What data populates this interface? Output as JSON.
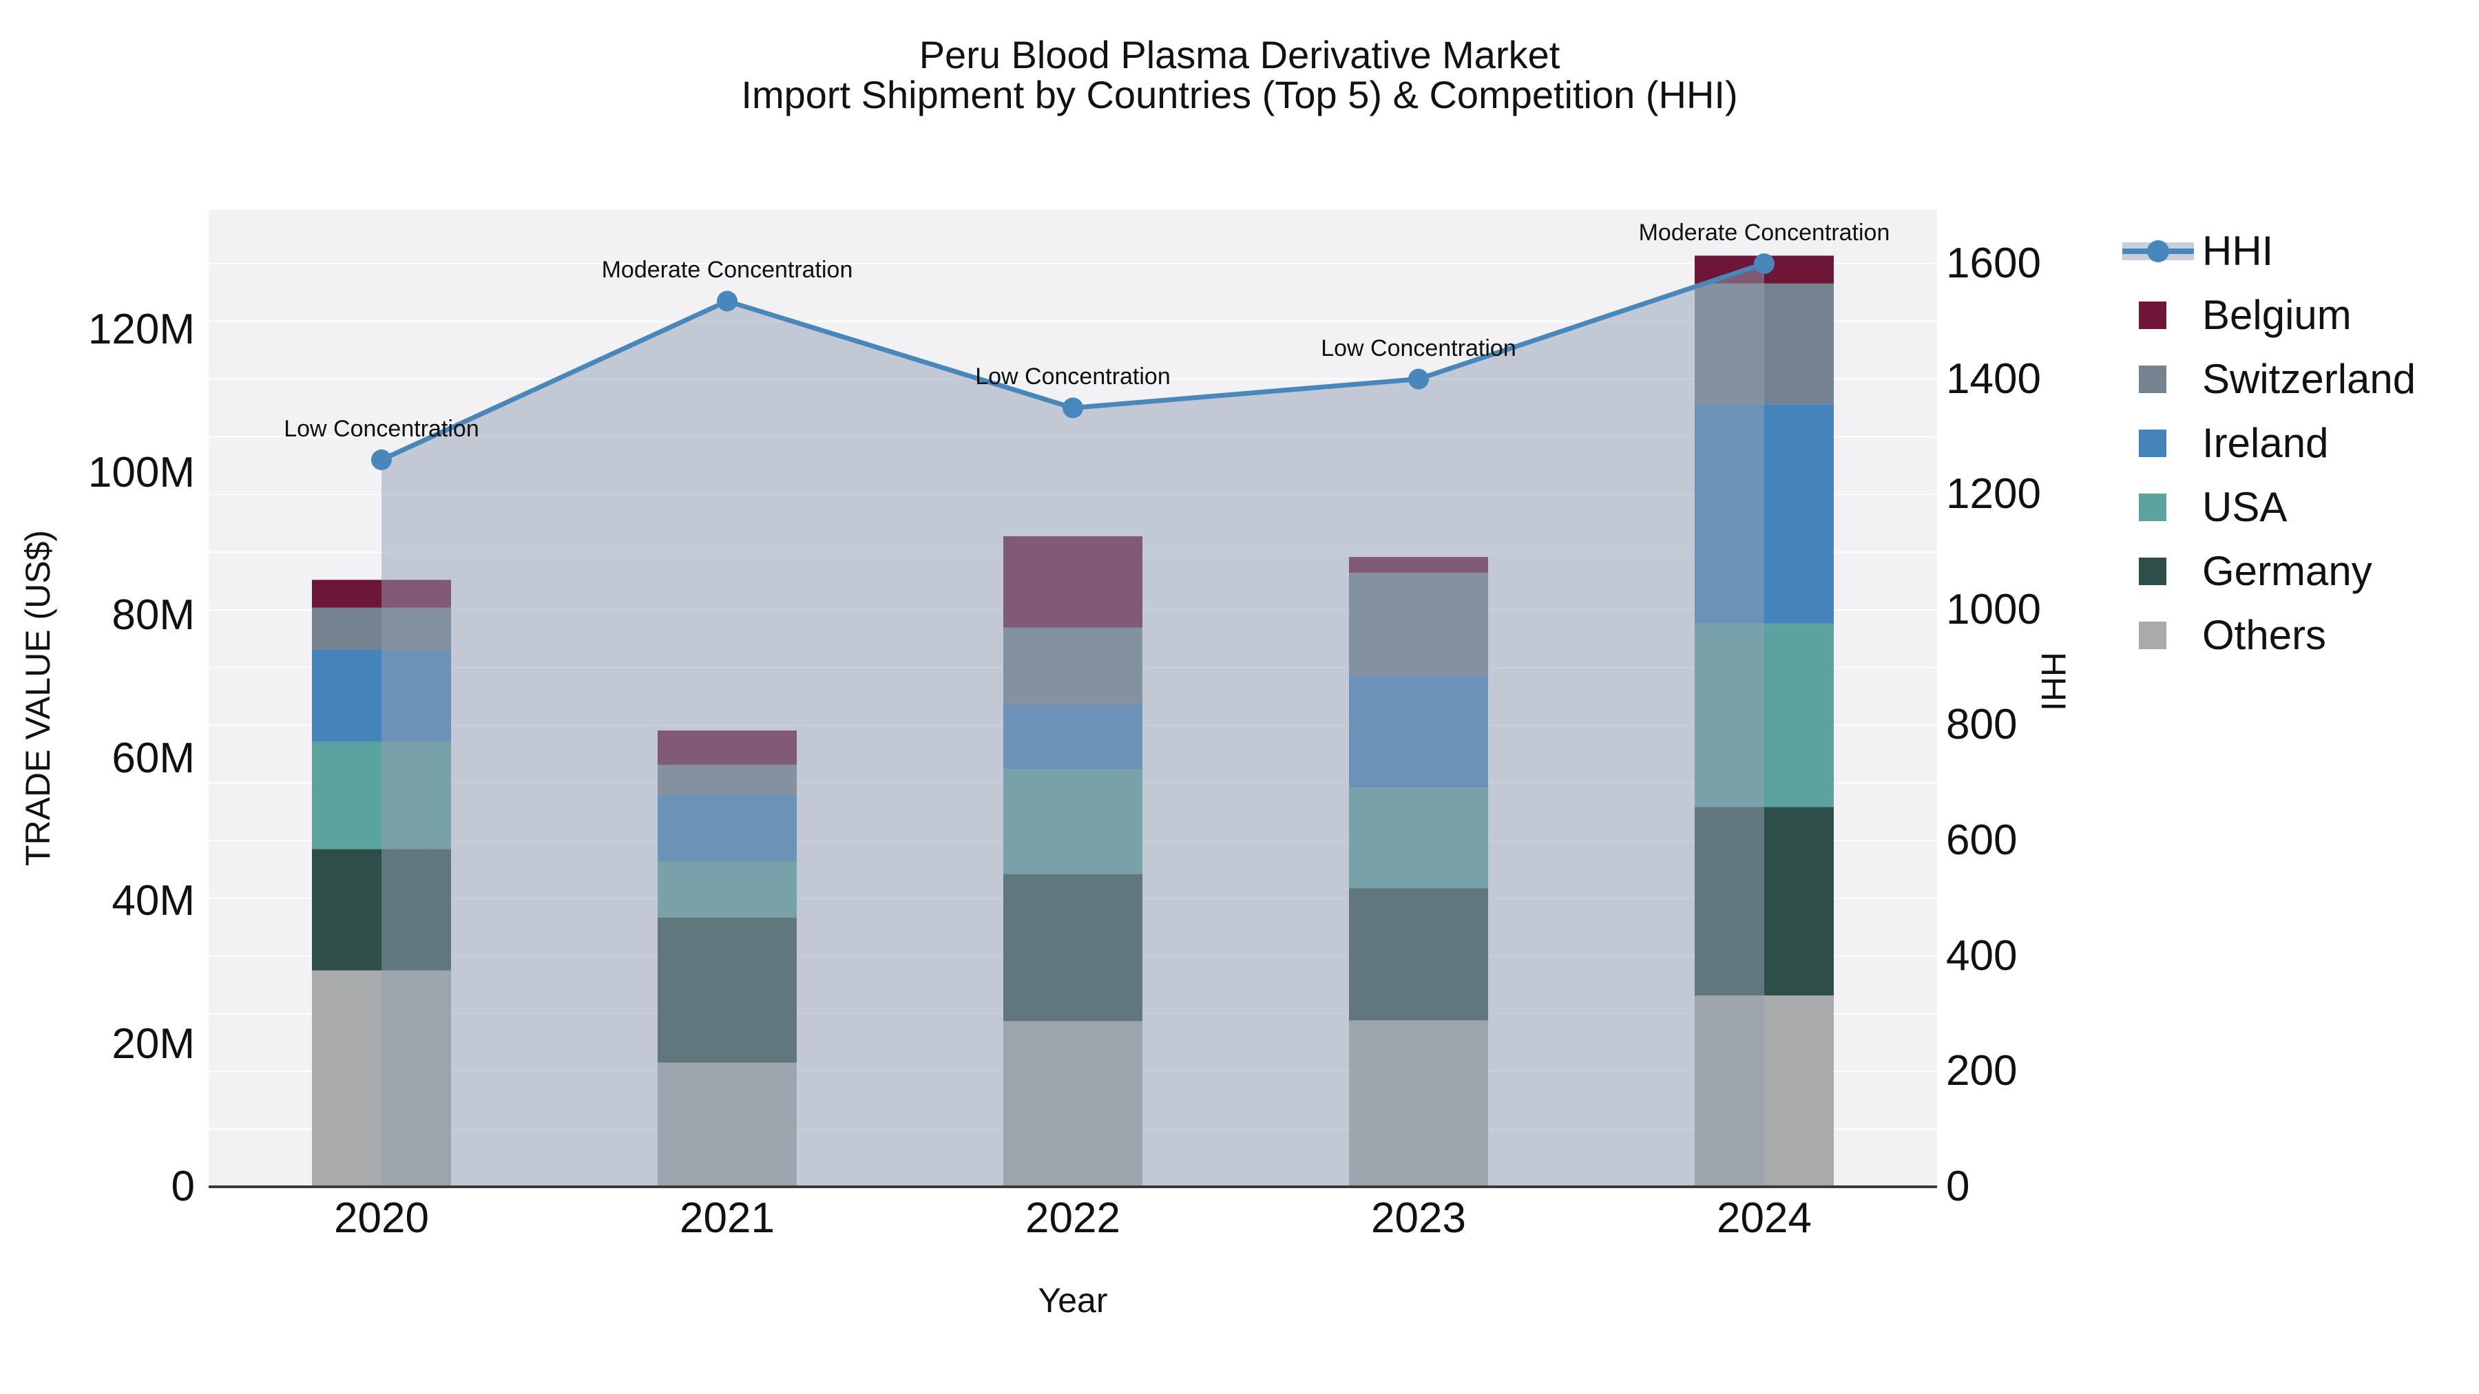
{
  "title": {
    "line1": "Peru Blood Plasma Derivative Market",
    "line2": "Import Shipment by Countries (Top 5) & Competition (HHI)"
  },
  "axes": {
    "x": {
      "title": "Year"
    },
    "left": {
      "title": "TRADE VALUE (US$)",
      "ticks": [
        "0",
        "20M",
        "40M",
        "60M",
        "80M",
        "100M",
        "120M"
      ],
      "tick_values": [
        0,
        20,
        40,
        60,
        80,
        100,
        120
      ]
    },
    "right": {
      "title": "HHI",
      "ticks": [
        "0",
        "200",
        "400",
        "600",
        "800",
        "1000",
        "1200",
        "1400",
        "1600"
      ],
      "tick_values": [
        0,
        200,
        400,
        600,
        800,
        1000,
        1200,
        1400,
        1600
      ]
    }
  },
  "chart_data": {
    "type": "bar+line",
    "title": "Peru Blood Plasma Derivative Market — Import Shipment by Countries (Top 5) & Competition (HHI)",
    "xlabel": "Year",
    "ylabel": "TRADE VALUE (US$)",
    "y2label": "HHI",
    "ylim": [
      0,
      136.8
    ],
    "y2lim": [
      0,
      1693
    ],
    "grid": "horizontal, every 100 HHI",
    "legend_position": "right",
    "categories": [
      "2020",
      "2021",
      "2022",
      "2023",
      "2024"
    ],
    "bar_unit": "million US$",
    "series": [
      {
        "name": "Others",
        "color": "#a9aaab",
        "values": [
          30.3,
          17.4,
          23.2,
          23.3,
          26.8
        ]
      },
      {
        "name": "Germany",
        "color": "#2d4e49",
        "values": [
          17.0,
          20.3,
          20.6,
          18.5,
          26.4
        ]
      },
      {
        "name": "USA",
        "color": "#5ca3a0",
        "values": [
          15.0,
          7.9,
          14.7,
          14.1,
          25.7
        ]
      },
      {
        "name": "Ireland",
        "color": "#4484bb",
        "values": [
          12.9,
          9.2,
          9.1,
          15.7,
          30.7
        ]
      },
      {
        "name": "Switzerland",
        "color": "#75828f",
        "values": [
          5.9,
          4.3,
          10.7,
          14.4,
          16.9
        ]
      },
      {
        "name": "Belgium",
        "color": "#6e1638",
        "values": [
          3.9,
          4.8,
          12.8,
          2.2,
          3.9
        ]
      }
    ],
    "bar_totals": [
      85.0,
      63.9,
      91.1,
      88.2,
      130.4
    ],
    "line_series": {
      "name": "HHI",
      "values": [
        1260,
        1535,
        1350,
        1400,
        1600
      ]
    },
    "annotations": [
      "Low Concentration",
      "Moderate Concentration",
      "Low Concentration",
      "Low Concentration",
      "Moderate Concentration"
    ]
  },
  "legend": {
    "items": [
      {
        "label": "HHI",
        "kind": "line"
      },
      {
        "label": "Belgium",
        "kind": "swatch",
        "color": "#6e1638"
      },
      {
        "label": "Switzerland",
        "kind": "swatch",
        "color": "#75828f"
      },
      {
        "label": "Ireland",
        "kind": "swatch",
        "color": "#4484bb"
      },
      {
        "label": "USA",
        "kind": "swatch",
        "color": "#5ca3a0"
      },
      {
        "label": "Germany",
        "kind": "swatch",
        "color": "#2d4e49"
      },
      {
        "label": "Others",
        "kind": "swatch",
        "color": "#a9aaab"
      }
    ]
  },
  "colors": {
    "plot_bg": "#f2f2f4",
    "gridline": "#ffffff",
    "axis_line": "#3b3b3b",
    "hhi_line": "#4887bb",
    "hhi_area": "rgba(148,160,180,0.5)",
    "text": "#111111"
  }
}
